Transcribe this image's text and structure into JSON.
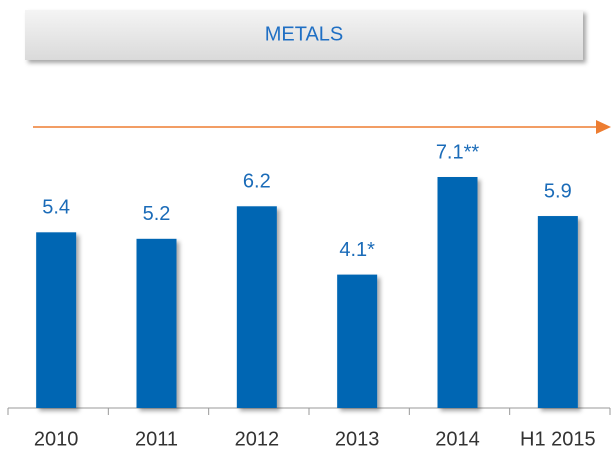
{
  "chart_data": {
    "type": "bar",
    "title": "METALS",
    "categories": [
      "2010",
      "2011",
      "2012",
      "2013",
      "2014",
      "H1 2015"
    ],
    "values": [
      5.4,
      5.2,
      6.2,
      4.1,
      7.1,
      5.9
    ],
    "value_labels": [
      "5.4",
      "5.2",
      "6.2",
      "4.1*",
      "7.1**",
      "5.9"
    ],
    "color": "#0066b3"
  }
}
